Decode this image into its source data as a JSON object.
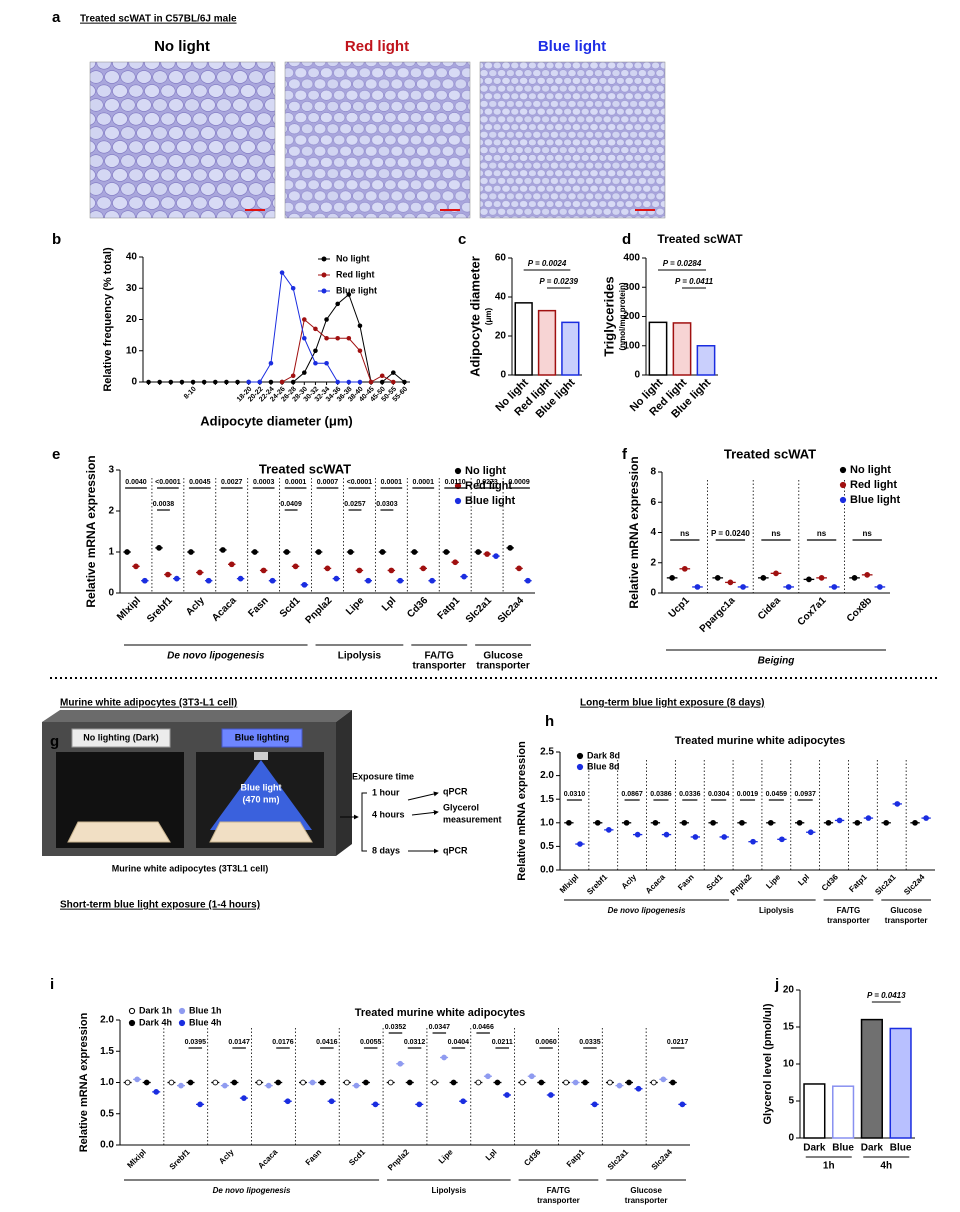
{
  "panel_labels": [
    "a",
    "b",
    "c",
    "d",
    "e",
    "f",
    "g",
    "h",
    "i",
    "j"
  ],
  "panel_a": {
    "title": "Treated scWAT in C57BL/6J male",
    "conditions": [
      "No light",
      "Red light",
      "Blue light"
    ],
    "colors": [
      "#000000",
      "#c0141c",
      "#1f2fe6"
    ]
  },
  "section_headers": [
    "Murine white adipocytes (3T3-L1 cell)",
    "Long-term blue light exposure (8 days)",
    "Short-term blue light exposure (1-4 hours)"
  ],
  "diagram_g": {
    "dark_label": "No lighting (Dark)",
    "blue_label": "Blue lighting",
    "light_text": [
      "Blue light",
      "(470 nm)"
    ],
    "caption": "Murine white adipocytes (3T3L1 cell)",
    "exposure_title": "Exposure time",
    "times": [
      "1 hour",
      "4 hours",
      "8 days"
    ],
    "outputs": [
      "qPCR",
      "Glycerol",
      "measurement",
      "qPCR"
    ]
  },
  "chart_data": [
    {
      "type": "line",
      "categories": [
        null,
        null,
        null,
        null,
        "8-10",
        null,
        null,
        null,
        null,
        "18-20",
        "20-22",
        "22-24",
        "24-26",
        "26-28",
        "28-30",
        "30-32",
        "32-34",
        "34-36",
        "36-38",
        "38-40",
        "40-45",
        "45-50",
        "50-55",
        "55-60"
      ],
      "series": [
        {
          "name": "No light",
          "color": "#000000",
          "values": [
            0,
            0,
            0,
            0,
            0,
            0,
            0,
            0,
            0,
            0,
            0,
            0,
            0,
            0,
            3,
            10,
            20,
            25,
            28,
            18,
            0,
            0,
            3,
            0
          ]
        },
        {
          "name": "Red light",
          "color": "#a01010",
          "values": [
            null,
            null,
            null,
            null,
            null,
            null,
            null,
            null,
            null,
            null,
            null,
            null,
            0,
            2,
            20,
            17,
            14,
            14,
            14,
            10,
            0,
            2,
            0,
            null
          ]
        },
        {
          "name": "Blue light",
          "color": "#1a2de0",
          "values": [
            null,
            null,
            null,
            null,
            null,
            null,
            null,
            null,
            null,
            0,
            0,
            6,
            35,
            30,
            14,
            6,
            6,
            0,
            0,
            0,
            null,
            null,
            null,
            null
          ]
        }
      ],
      "xlabel": "Adipocyte diameter (μm)",
      "ylabel": "Relative frequency (% total)",
      "ylim": [
        0,
        40
      ],
      "yticks": [
        0,
        10,
        20,
        30,
        40
      ]
    },
    {
      "type": "bar",
      "categories": [
        "No light",
        "Red light",
        "Blue light"
      ],
      "values": [
        37,
        33,
        27
      ],
      "colors": [
        "#000000",
        "#a01010",
        "#1a2de0"
      ],
      "fills": [
        "#ffffff",
        "#f7d4d4",
        "#c9cffc"
      ],
      "ylabel": "Adipocyte diameter",
      "ylabel_unit": "(μm)",
      "comparisons": [
        {
          "label": "P = 0.0024",
          "groups": [
            0,
            2
          ]
        },
        {
          "label": "P = 0.0239",
          "groups": [
            1,
            2
          ]
        }
      ],
      "ylim": [
        0,
        60
      ],
      "yticks": [
        0,
        20,
        40,
        60
      ]
    },
    {
      "type": "bar",
      "title": "Treated scWAT",
      "categories": [
        "No light",
        "Red light",
        "Blue light"
      ],
      "values": [
        180,
        178,
        100
      ],
      "colors": [
        "#000000",
        "#a01010",
        "#1a2de0"
      ],
      "fills": [
        "#ffffff",
        "#f7d4d4",
        "#c9cffc"
      ],
      "ylabel": "Triglycerides",
      "ylabel_unit": "(nmol/mg protein)",
      "comparisons": [
        {
          "label": "P = 0.0284",
          "groups": [
            0,
            2
          ]
        },
        {
          "label": "P = 0.0411",
          "groups": [
            1,
            2
          ]
        }
      ],
      "ylim": [
        0,
        400
      ],
      "yticks": [
        0,
        100,
        200,
        300,
        400
      ]
    },
    {
      "type": "scatter",
      "title": "Treated scWAT",
      "ylabel": "Relative mRNA expression",
      "categories": [
        "Mlxipl",
        "Srebf1",
        "Acly",
        "Acaca",
        "Fasn",
        "Scd1",
        "Pnpla2",
        "Lipe",
        "Lpl",
        "Cd36",
        "Fatp1",
        "Slc2a1",
        "Slc2a4"
      ],
      "series": [
        {
          "name": "No light",
          "color": "#000000",
          "values": [
            1.0,
            1.1,
            1.0,
            1.05,
            1.0,
            1.0,
            1.0,
            1.0,
            1.0,
            1.0,
            1.0,
            1.0,
            1.1
          ]
        },
        {
          "name": "Red light",
          "color": "#a01010",
          "values": [
            0.65,
            0.45,
            0.5,
            0.7,
            0.55,
            0.65,
            0.6,
            0.55,
            0.55,
            0.6,
            0.75,
            0.95,
            0.6
          ]
        },
        {
          "name": "Blue light",
          "color": "#1a2de0",
          "values": [
            0.3,
            0.35,
            0.3,
            0.35,
            0.3,
            0.2,
            0.35,
            0.3,
            0.3,
            0.3,
            0.4,
            0.9,
            0.3
          ]
        }
      ],
      "comparisons": [
        {
          "series": [
            0,
            2
          ],
          "labels": [
            "0.0040",
            "<0.0001",
            "0.0045",
            "0.0027",
            "0.0003",
            "0.0001",
            "0.0007",
            "<0.0001",
            "0.0001",
            "0.0001",
            "0.0110",
            "0.0273",
            "0.0009"
          ]
        },
        {
          "series": [
            0,
            1
          ],
          "labels": [
            null,
            "0.0038",
            null,
            null,
            null,
            "0.0409",
            null,
            "0.0257",
            "0.0303",
            null,
            null,
            null,
            null
          ]
        }
      ],
      "groups": [
        [
          "De novo lipogenesis"
        ],
        [
          "Lipolysis"
        ],
        [
          "FA/TG",
          "transporter"
        ],
        [
          "Glucose",
          "transporter"
        ]
      ],
      "ylim": [
        0,
        3
      ],
      "yticks": [
        0,
        1,
        2,
        3
      ]
    },
    {
      "type": "scatter",
      "title": "Treated scWAT",
      "ylabel": "Relative mRNA expression",
      "categories": [
        "Ucp1",
        "Ppargc1a",
        "Cidea",
        "Cox7a1",
        "Cox8b"
      ],
      "series": [
        {
          "name": "No light",
          "color": "#000000",
          "values": [
            1.0,
            1.0,
            1.0,
            0.9,
            1.0
          ]
        },
        {
          "name": "Red light",
          "color": "#a01010",
          "values": [
            1.6,
            0.7,
            1.3,
            1.0,
            1.2
          ]
        },
        {
          "name": "Blue light",
          "color": "#1a2de0",
          "values": [
            0.4,
            0.4,
            0.4,
            0.4,
            0.4
          ]
        }
      ],
      "comparisons": [
        {
          "series": [
            0,
            2
          ],
          "labels": [
            "ns",
            "P = 0.0240",
            "ns",
            "ns",
            "ns"
          ]
        }
      ],
      "groups": [
        [
          "Beiging"
        ]
      ],
      "ylim": [
        0,
        8
      ],
      "yticks": [
        0,
        2,
        4,
        6,
        8
      ]
    },
    {
      "type": "scatter",
      "title": "Treated murine white adipocytes",
      "ylabel": "Relative mRNA expression",
      "categories": [
        "Mlxipl",
        "Srebf1",
        "Acly",
        "Acaca",
        "Fasn",
        "Scd1",
        "Pnpla2",
        "Lipe",
        "Lpl",
        "Cd36",
        "Fatp1",
        "Slc2a1",
        "Slc2a4"
      ],
      "series": [
        {
          "name": "Dark 8d",
          "color": "#000000",
          "values": [
            1.0,
            1.0,
            1.0,
            1.0,
            1.0,
            1.0,
            1.0,
            1.0,
            1.0,
            1.0,
            1.0,
            1.0,
            1.0
          ]
        },
        {
          "name": "Blue 8d",
          "color": "#1a2de0",
          "values": [
            0.55,
            0.85,
            0.75,
            0.75,
            0.7,
            0.7,
            0.6,
            0.65,
            0.8,
            1.05,
            1.1,
            1.4,
            1.1
          ]
        }
      ],
      "comparisons": [
        {
          "series": [
            0,
            1
          ],
          "labels": [
            "0.0310",
            null,
            "0.0867",
            "0.0386",
            "0.0336",
            "0.0304",
            "0.0019",
            "0.0459",
            "0.0937",
            null,
            null,
            null,
            null
          ]
        }
      ],
      "groups": [
        [
          "De novo lipogenesis"
        ],
        [
          "Lipolysis"
        ],
        [
          "FA/TG",
          "transporter"
        ],
        [
          "Glucose",
          "transporter"
        ]
      ],
      "ylim": [
        0,
        2.5
      ],
      "yticks": [
        {
          "value": 0,
          "label": "0.0"
        },
        0.5,
        {
          "value": 1,
          "label": "1.0"
        },
        1.5,
        {
          "value": 2,
          "label": "2.0"
        },
        2.5
      ]
    },
    {
      "type": "scatter",
      "title": "Treated murine white adipocytes",
      "ylabel": "Relative mRNA expression",
      "categories": [
        "Mlxipl",
        "Srebf1",
        "Acly",
        "Acaca",
        "Fasn",
        "Scd1",
        "Pnpla2",
        "Lipe",
        "Lpl",
        "Cd36",
        "Fatp1",
        "Slc2a1",
        "Slc2a4"
      ],
      "series": [
        {
          "name": "Dark 1h",
          "color": "#000000",
          "hollow": true,
          "values": [
            1.0,
            1.0,
            1.0,
            1.0,
            1.0,
            1.0,
            1.0,
            1.0,
            1.0,
            1.0,
            1.0,
            1.0,
            1.0
          ]
        },
        {
          "name": "Blue 1h",
          "color": "#8f9bf0",
          "values": [
            1.05,
            0.95,
            0.95,
            0.95,
            1.0,
            0.95,
            1.3,
            1.4,
            1.1,
            1.1,
            1.0,
            0.95,
            1.05
          ]
        },
        {
          "name": "Dark 4h",
          "color": "#000000",
          "values": [
            1.0,
            1.0,
            1.0,
            1.0,
            1.0,
            1.0,
            1.0,
            1.0,
            1.0,
            1.0,
            1.0,
            1.0,
            1.0
          ]
        },
        {
          "name": "Blue 4h",
          "color": "#1a2de0",
          "values": [
            0.85,
            0.65,
            0.75,
            0.7,
            0.7,
            0.65,
            0.65,
            0.7,
            0.8,
            0.8,
            0.65,
            0.9,
            0.65
          ]
        }
      ],
      "comparisons": [
        {
          "series": [
            0,
            1
          ],
          "labels": [
            null,
            null,
            null,
            null,
            null,
            null,
            "0.0352",
            "0.0347",
            "0.0466",
            null,
            null,
            null,
            null
          ]
        },
        {
          "series": [
            2,
            3
          ],
          "labels": [
            null,
            "0.0395",
            "0.0147",
            "0.0176",
            "0.0416",
            "0.0055",
            "0.0312",
            "0.0404",
            "0.0211",
            "0.0060",
            "0.0335",
            null,
            "0.0217"
          ]
        }
      ],
      "groups": [
        [
          "De novo lipogenesis"
        ],
        [
          "Lipolysis"
        ],
        [
          "FA/TG",
          "transporter"
        ],
        [
          "Glucose",
          "transporter"
        ]
      ],
      "ylim": [
        0,
        2
      ],
      "yticks": [
        {
          "value": 0,
          "label": "0.0"
        },
        0.5,
        {
          "value": 1,
          "label": "1.0"
        },
        1.5,
        {
          "value": 2,
          "label": "2.0"
        }
      ]
    },
    {
      "type": "bar",
      "categories": [
        "Dark",
        "Blue",
        "Dark",
        "Blue"
      ],
      "values": [
        7.3,
        7.0,
        16,
        14.8
      ],
      "colors": [
        "#000000",
        "#8890f0",
        "#000000",
        "#1a2de0"
      ],
      "fills": [
        "#ffffff",
        "#ffffff",
        "#707070",
        "#b8c0ff"
      ],
      "subgroups": [
        "1h",
        "4h"
      ],
      "ylabel": "Glycerol level (pmol/ul)",
      "comparisons": [
        {
          "label": "P = 0.0413",
          "groups": [
            2,
            3
          ]
        }
      ],
      "ylim": [
        0,
        20
      ],
      "yticks": [
        0,
        5,
        10,
        15,
        20
      ]
    }
  ]
}
